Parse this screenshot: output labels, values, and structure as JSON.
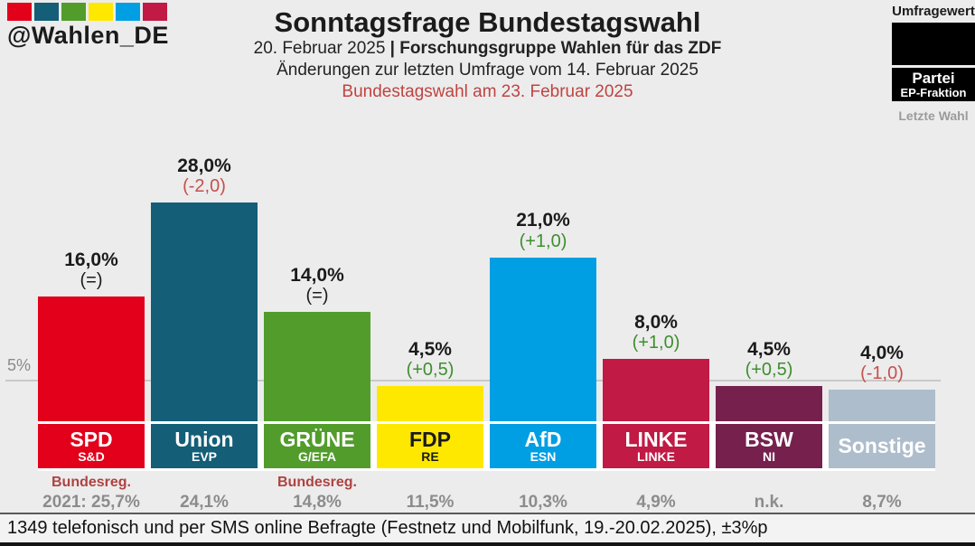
{
  "brand": {
    "handle": "@Wahlen_DE",
    "swatch_colors": [
      "#e2001a",
      "#145e77",
      "#529c2c",
      "#ffe800",
      "#009fe3",
      "#c01a45"
    ]
  },
  "header": {
    "title": "Sonntagsfrage Bundestagswahl",
    "subtitle_date": "20. Februar 2025",
    "subtitle_separator": "|",
    "subtitle_source": "Forschungsgruppe Wahlen für das ZDF",
    "subtitle_changes": "Änderungen zur letzten Umfrage vom 14. Februar 2025",
    "subtitle_election": "Bundestagswahl am 23. Februar 2025",
    "election_color": "#bf4341"
  },
  "legend": {
    "survey_label": "Umfragewert",
    "party_label": "Partei",
    "faction_label": "EP-Fraktion",
    "last_election_label": "Letzte Wahl"
  },
  "axis": {
    "gridline_label": "5%"
  },
  "chart_data": {
    "type": "bar",
    "title": "Sonntagsfrage Bundestagswahl",
    "ylabel": "Umfragewert (%)",
    "ylim": [
      0,
      30
    ],
    "gridlines": [
      5
    ],
    "legend_position": "top-right",
    "categories": [
      "SPD",
      "Union",
      "GRÜNE",
      "FDP",
      "AfD",
      "LINKE",
      "BSW",
      "Sonstige"
    ],
    "values": [
      16.0,
      28.0,
      14.0,
      4.5,
      21.0,
      8.0,
      4.5,
      4.0
    ],
    "changes": [
      0,
      -2.0,
      0,
      0.5,
      1.0,
      1.0,
      0.5,
      -1.0
    ],
    "parties": [
      {
        "name": "SPD",
        "faction": "S&D",
        "value": 16.0,
        "value_label": "16,0%",
        "change_label": "(=)",
        "change_color": "#1b1b1b",
        "color": "#e2001a",
        "text_color": "#ffffff",
        "note": "Bundesreg.",
        "last_election": "2021: 25,7%"
      },
      {
        "name": "Union",
        "faction": "EVP",
        "value": 28.0,
        "value_label": "28,0%",
        "change_label": "(-2,0)",
        "change_color": "#c5514c",
        "color": "#145e77",
        "text_color": "#ffffff",
        "note": "",
        "last_election": "24,1%"
      },
      {
        "name": "GRÜNE",
        "faction": "G/EFA",
        "value": 14.0,
        "value_label": "14,0%",
        "change_label": "(=)",
        "change_color": "#1b1b1b",
        "color": "#529c2c",
        "text_color": "#ffffff",
        "note": "Bundesreg.",
        "last_election": "14,8%"
      },
      {
        "name": "FDP",
        "faction": "RE",
        "value": 4.5,
        "value_label": "4,5%",
        "change_label": "(+0,5)",
        "change_color": "#3e8e2e",
        "color": "#ffe800",
        "text_color": "#1a1a1a",
        "note": "",
        "last_election": "11,5%"
      },
      {
        "name": "AfD",
        "faction": "ESN",
        "value": 21.0,
        "value_label": "21,0%",
        "change_label": "(+1,0)",
        "change_color": "#3e8e2e",
        "color": "#009fe3",
        "text_color": "#ffffff",
        "note": "",
        "last_election": "10,3%"
      },
      {
        "name": "LINKE",
        "faction": "LINKE",
        "value": 8.0,
        "value_label": "8,0%",
        "change_label": "(+1,0)",
        "change_color": "#3e8e2e",
        "color": "#c01a45",
        "text_color": "#ffffff",
        "note": "",
        "last_election": "4,9%"
      },
      {
        "name": "BSW",
        "faction": "NI",
        "value": 4.5,
        "value_label": "4,5%",
        "change_label": "(+0,5)",
        "change_color": "#3e8e2e",
        "color": "#76204e",
        "text_color": "#ffffff",
        "note": "",
        "last_election": "n.k."
      },
      {
        "name": "Sonstige",
        "faction": "",
        "value": 4.0,
        "value_label": "4,0%",
        "change_label": "(-1,0)",
        "change_color": "#c5514c",
        "color": "#aebdcb",
        "text_color": "#ffffff",
        "note": "",
        "last_election": "8,7%"
      }
    ]
  },
  "footer": {
    "text": "1349 telefonisch und per SMS online Befragte (Festnetz und Mobilfunk, 19.-20.02.2025), ±3%p"
  }
}
